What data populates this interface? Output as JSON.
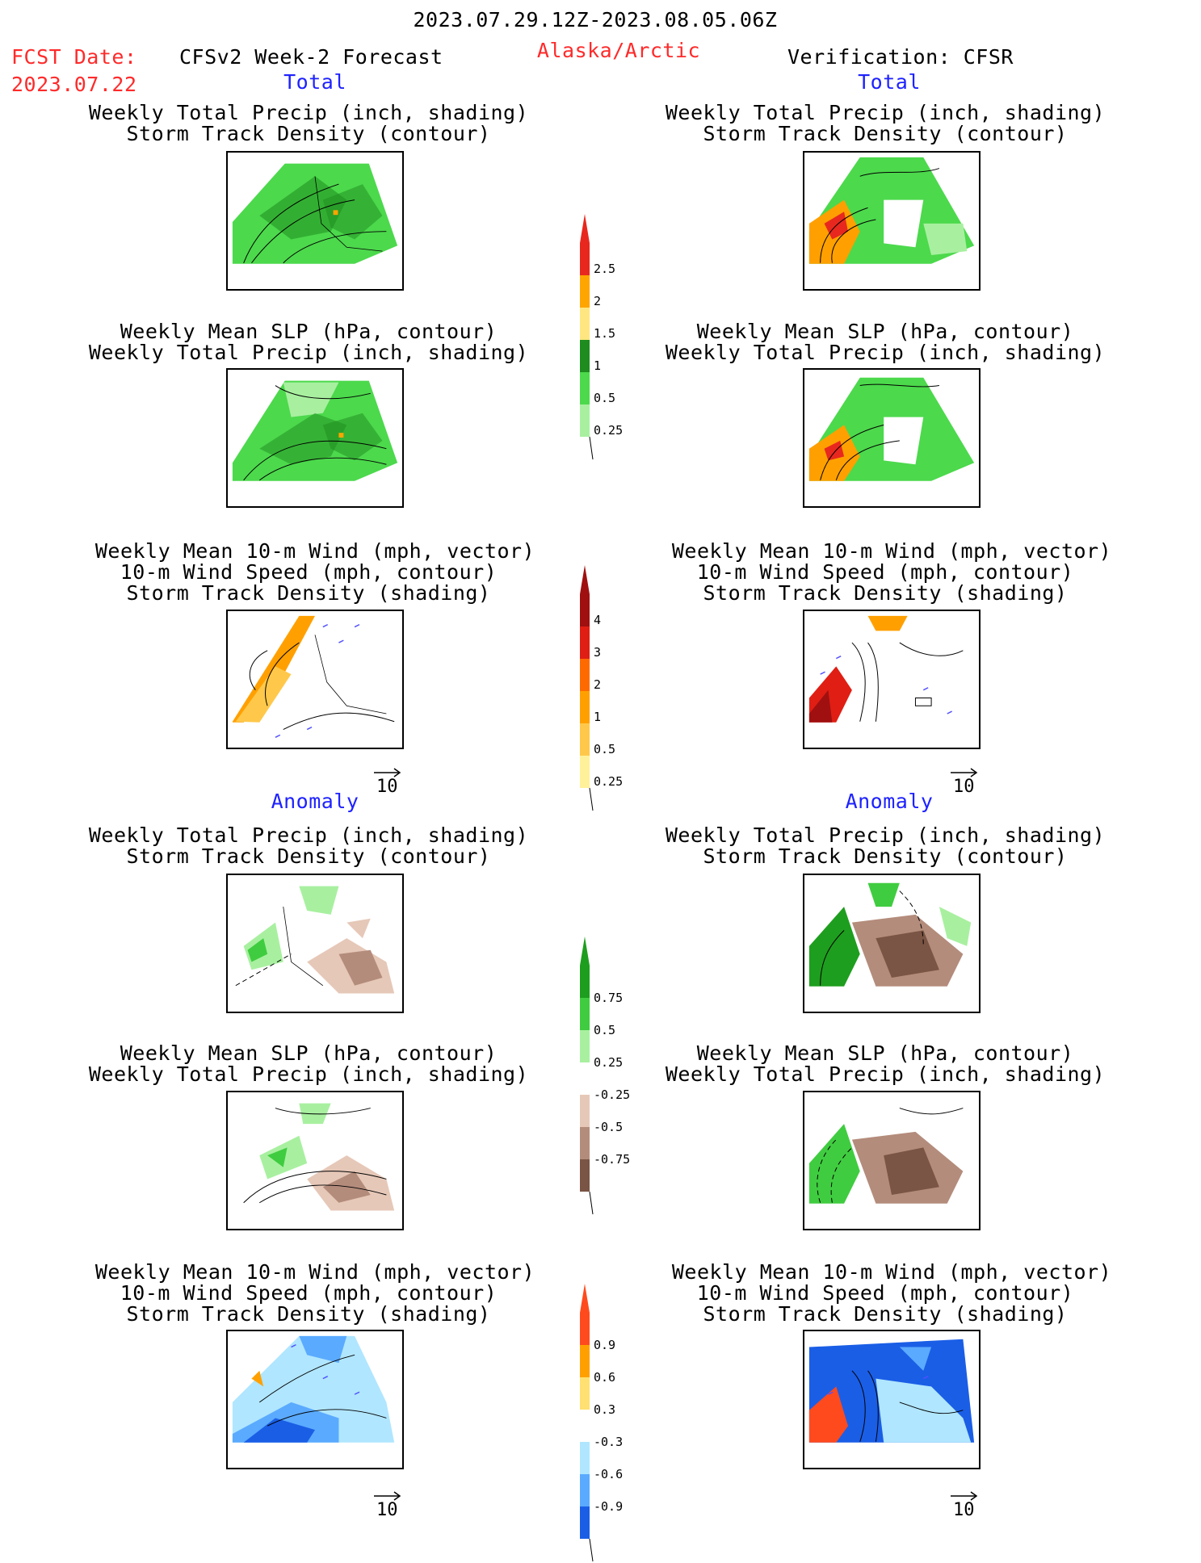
{
  "header": {
    "date_range": "2023.07.29.12Z-2023.08.05.06Z",
    "fcst_date_label": "FCST Date:",
    "fcst_date_value": "2023.07.22",
    "model_title": "CFSv2 Week-2 Forecast",
    "region": "Alaska/Arctic",
    "verification": "Verification: CFSR"
  },
  "sections": {
    "total_label": "Total",
    "anomaly_label": "Anomaly"
  },
  "panel_titles": {
    "precip_storm": [
      "Weekly Total Precip (inch, shading)",
      "Storm Track Density (contour)"
    ],
    "slp_precip": [
      "Weekly Mean SLP (hPa, contour)",
      "Weekly Total Precip (inch, shading)"
    ],
    "wind_storm": [
      "Weekly Mean 10-m Wind (mph, vector)",
      "10-m Wind Speed (mph, contour)",
      "Storm Track Density (shading)"
    ]
  },
  "vector_scale_label": "10",
  "colorbars": {
    "total_precip": {
      "ticks": [
        "2.5",
        "2",
        "1.5",
        "1",
        "0.5",
        "0.25"
      ],
      "colors": [
        "#e8281e",
        "#ffa500",
        "#ffe680",
        "#1e8c1e",
        "#4cd94c",
        "#a8f0a0"
      ]
    },
    "total_storm": {
      "ticks": [
        "4",
        "3",
        "2",
        "1",
        "0.5",
        "0.25"
      ],
      "colors": [
        "#a01010",
        "#e01e14",
        "#ff6a00",
        "#ffa000",
        "#ffc84a",
        "#fff09a"
      ]
    },
    "anom_precip": {
      "ticks": [
        "0.75",
        "0.5",
        "0.25",
        "-0.25",
        "-0.5",
        "-0.75"
      ],
      "colors": [
        "#1e9e1e",
        "#40cc40",
        "#a8f0a0",
        "#ffffff",
        "#e6c8b8",
        "#b48c7c",
        "#7a5444"
      ]
    },
    "anom_storm": {
      "ticks": [
        "0.9",
        "0.6",
        "0.3",
        "-0.3",
        "-0.6",
        "-0.9"
      ],
      "colors": [
        "#ff4a1e",
        "#ffa000",
        "#ffe070",
        "#ffffff",
        "#b0e6ff",
        "#5aaaff",
        "#1a5ee6"
      ]
    }
  },
  "colors": {
    "red_text": "#ff2a2a",
    "blue_text": "#1e22ff"
  }
}
